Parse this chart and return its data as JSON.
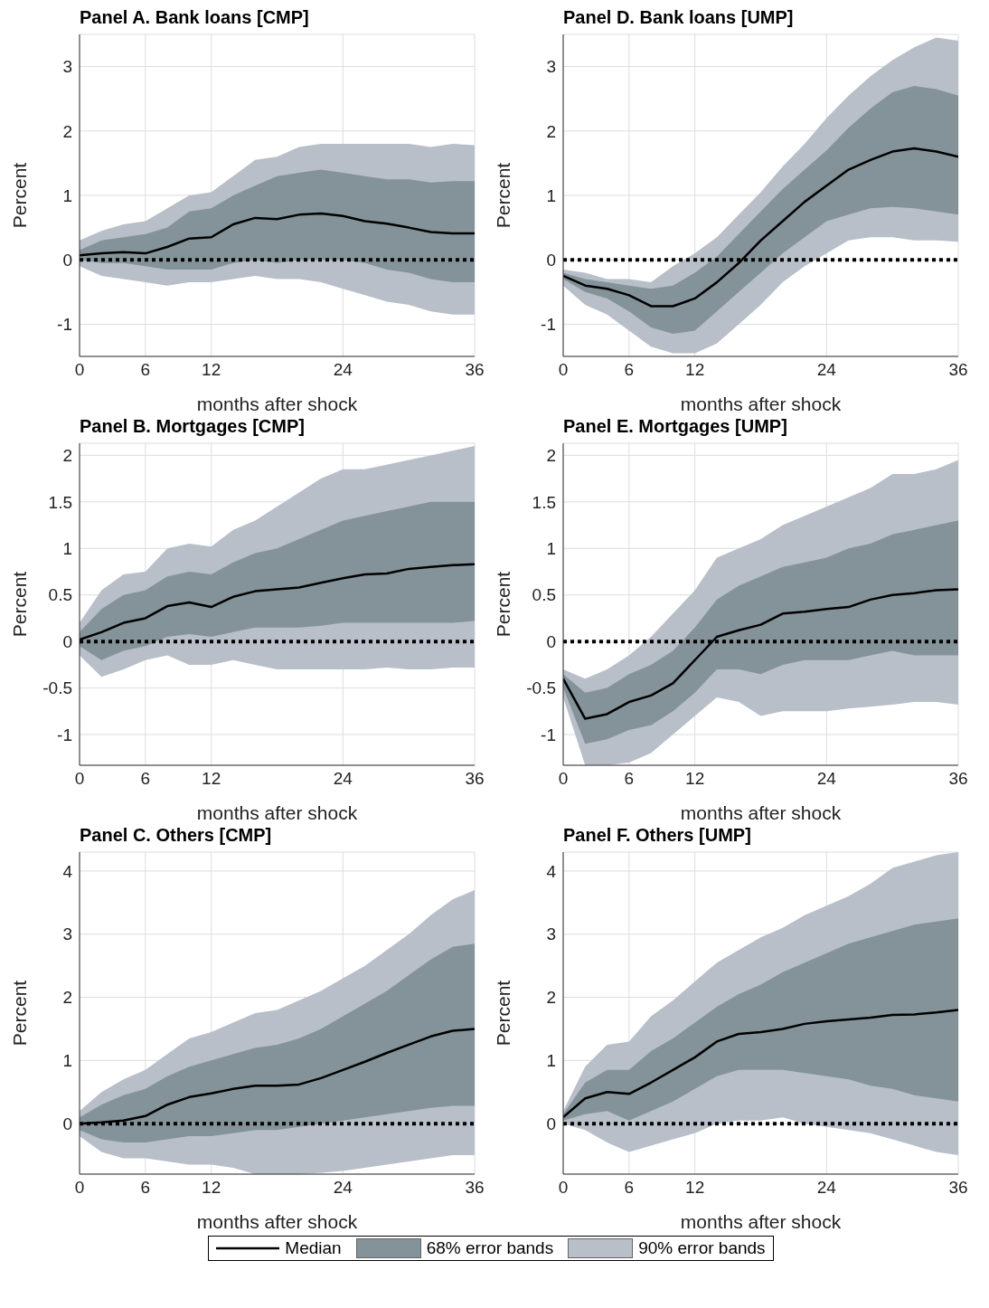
{
  "chart_data": [
    {
      "type": "line",
      "title": "Panel A. Bank loans [CMP]",
      "xlabel": "months after shock",
      "ylabel": "Percent",
      "xlim": [
        0,
        36
      ],
      "xticks": [
        0,
        6,
        12,
        24,
        36
      ],
      "ylim": [
        -1.5,
        3.5
      ],
      "yticks": [
        -1,
        0,
        1,
        2,
        3
      ],
      "grid": true,
      "ref_lines": [
        {
          "axis": "y",
          "value": 0,
          "color": "#000000",
          "line_style": "dotted"
        }
      ],
      "x": [
        0,
        2,
        4,
        6,
        8,
        10,
        12,
        14,
        16,
        18,
        20,
        22,
        24,
        26,
        28,
        30,
        32,
        34,
        36
      ],
      "series": [
        {
          "type": "line",
          "color": "#000000",
          "values": [
            0.07,
            0.1,
            0.12,
            0.1,
            0.2,
            0.33,
            0.35,
            0.55,
            0.65,
            0.63,
            0.7,
            0.72,
            0.68,
            0.6,
            0.56,
            0.5,
            0.43,
            0.41,
            0.41
          ]
        },
        {
          "type": "line",
          "color": "#849399",
          "values": [
            null,
            null,
            null,
            null,
            null,
            null,
            null,
            null,
            null,
            null,
            null,
            null,
            null,
            null,
            null,
            null,
            null,
            null,
            null
          ],
          "lower": [
            0,
            -0.05,
            -0.05,
            -0.1,
            -0.15,
            -0.15,
            -0.15,
            -0.05,
            0,
            -0.05,
            0,
            0,
            0,
            -0.05,
            -0.15,
            -0.2,
            -0.3,
            -0.35,
            -0.35
          ],
          "upper": [
            0.15,
            0.3,
            0.35,
            0.4,
            0.5,
            0.75,
            0.8,
            1.0,
            1.15,
            1.3,
            1.35,
            1.4,
            1.35,
            1.3,
            1.25,
            1.25,
            1.2,
            1.22,
            1.22
          ]
        },
        {
          "type": "line",
          "color": "#b8bfc9",
          "values": [
            null,
            null,
            null,
            null,
            null,
            null,
            null,
            null,
            null,
            null,
            null,
            null,
            null,
            null,
            null,
            null,
            null,
            null,
            null
          ],
          "lower": [
            -0.1,
            -0.25,
            -0.3,
            -0.35,
            -0.4,
            -0.35,
            -0.35,
            -0.3,
            -0.25,
            -0.3,
            -0.3,
            -0.35,
            -0.45,
            -0.55,
            -0.65,
            -0.7,
            -0.8,
            -0.85,
            -0.85
          ],
          "upper": [
            0.3,
            0.45,
            0.55,
            0.6,
            0.8,
            1.0,
            1.05,
            1.3,
            1.55,
            1.6,
            1.75,
            1.8,
            1.8,
            1.8,
            1.8,
            1.8,
            1.75,
            1.8,
            1.78
          ]
        }
      ]
    },
    {
      "type": "line",
      "title": "Panel D. Bank loans [UMP]",
      "xlabel": "months after shock",
      "ylabel": "Percent",
      "xlim": [
        0,
        36
      ],
      "xticks": [
        0,
        6,
        12,
        24,
        36
      ],
      "ylim": [
        -1.5,
        3.5
      ],
      "yticks": [
        -1,
        0,
        1,
        2,
        3
      ],
      "grid": true,
      "ref_lines": [
        {
          "axis": "y",
          "value": 0,
          "color": "#000000",
          "line_style": "dotted"
        }
      ],
      "x": [
        0,
        2,
        4,
        6,
        8,
        10,
        12,
        14,
        16,
        18,
        20,
        22,
        24,
        26,
        28,
        30,
        32,
        34,
        36
      ],
      "series": [
        {
          "type": "line",
          "color": "#000000",
          "values": [
            -0.25,
            -0.4,
            -0.45,
            -0.55,
            -0.72,
            -0.72,
            -0.6,
            -0.35,
            -0.05,
            0.3,
            0.6,
            0.9,
            1.15,
            1.4,
            1.55,
            1.68,
            1.73,
            1.68,
            1.6
          ]
        },
        {
          "type": "line",
          "color": "#849399",
          "values": [
            null,
            null,
            null,
            null,
            null,
            null,
            null,
            null,
            null,
            null,
            null,
            null,
            null,
            null,
            null,
            null,
            null,
            null,
            null
          ],
          "lower": [
            -0.3,
            -0.5,
            -0.6,
            -0.8,
            -1.05,
            -1.15,
            -1.1,
            -0.8,
            -0.5,
            -0.2,
            0.1,
            0.35,
            0.6,
            0.7,
            0.8,
            0.82,
            0.8,
            0.75,
            0.7
          ],
          "upper": [
            -0.2,
            -0.3,
            -0.35,
            -0.4,
            -0.45,
            -0.4,
            -0.2,
            0.05,
            0.4,
            0.75,
            1.1,
            1.4,
            1.7,
            2.05,
            2.35,
            2.6,
            2.7,
            2.65,
            2.55
          ]
        },
        {
          "type": "line",
          "color": "#b8bfc9",
          "values": [
            null,
            null,
            null,
            null,
            null,
            null,
            null,
            null,
            null,
            null,
            null,
            null,
            null,
            null,
            null,
            null,
            null,
            null,
            null
          ],
          "lower": [
            -0.4,
            -0.7,
            -0.85,
            -1.1,
            -1.35,
            -1.45,
            -1.45,
            -1.3,
            -1.0,
            -0.7,
            -0.35,
            -0.1,
            0.1,
            0.3,
            0.35,
            0.35,
            0.3,
            0.3,
            0.28
          ],
          "upper": [
            -0.15,
            -0.2,
            -0.3,
            -0.3,
            -0.35,
            -0.1,
            0.1,
            0.35,
            0.7,
            1.05,
            1.45,
            1.8,
            2.2,
            2.55,
            2.85,
            3.1,
            3.3,
            3.45,
            3.4
          ]
        }
      ]
    },
    {
      "type": "line",
      "title": "Panel B. Mortgages [CMP]",
      "xlabel": "months after shock",
      "ylabel": "Percent",
      "xlim": [
        0,
        36
      ],
      "xticks": [
        0,
        6,
        12,
        24,
        36
      ],
      "ylim": [
        -1.33,
        2.13
      ],
      "yticks": [
        -1,
        -0.5,
        0,
        0.5,
        1,
        1.5,
        2
      ],
      "grid": true,
      "ref_lines": [
        {
          "axis": "y",
          "value": 0,
          "color": "#000000",
          "line_style": "dotted"
        }
      ],
      "x": [
        0,
        2,
        4,
        6,
        8,
        10,
        12,
        14,
        16,
        18,
        20,
        22,
        24,
        26,
        28,
        30,
        32,
        34,
        36
      ],
      "series": [
        {
          "type": "line",
          "color": "#000000",
          "values": [
            0.02,
            0.1,
            0.2,
            0.25,
            0.38,
            0.42,
            0.37,
            0.48,
            0.54,
            0.56,
            0.58,
            0.63,
            0.68,
            0.72,
            0.73,
            0.78,
            0.8,
            0.82,
            0.83
          ]
        },
        {
          "type": "line",
          "color": "#849399",
          "values": [
            null,
            null,
            null,
            null,
            null,
            null,
            null,
            null,
            null,
            null,
            null,
            null,
            null,
            null,
            null,
            null,
            null,
            null,
            null
          ],
          "lower": [
            -0.05,
            -0.2,
            -0.1,
            -0.05,
            0.05,
            0.08,
            0.05,
            0.1,
            0.15,
            0.15,
            0.15,
            0.17,
            0.2,
            0.2,
            0.2,
            0.2,
            0.2,
            0.2,
            0.22
          ],
          "upper": [
            0.1,
            0.35,
            0.5,
            0.55,
            0.7,
            0.75,
            0.72,
            0.85,
            0.95,
            1.0,
            1.1,
            1.2,
            1.3,
            1.35,
            1.4,
            1.45,
            1.5,
            1.5,
            1.5
          ]
        },
        {
          "type": "line",
          "color": "#b8bfc9",
          "values": [
            null,
            null,
            null,
            null,
            null,
            null,
            null,
            null,
            null,
            null,
            null,
            null,
            null,
            null,
            null,
            null,
            null,
            null,
            null
          ],
          "lower": [
            -0.15,
            -0.38,
            -0.3,
            -0.2,
            -0.15,
            -0.25,
            -0.25,
            -0.2,
            -0.25,
            -0.3,
            -0.3,
            -0.3,
            -0.3,
            -0.3,
            -0.28,
            -0.3,
            -0.3,
            -0.28,
            -0.28
          ],
          "upper": [
            0.2,
            0.55,
            0.72,
            0.75,
            1.0,
            1.05,
            1.02,
            1.2,
            1.3,
            1.45,
            1.6,
            1.75,
            1.85,
            1.85,
            1.9,
            1.95,
            2.0,
            2.05,
            2.1
          ]
        }
      ]
    },
    {
      "type": "line",
      "title": "Panel E. Mortgages [UMP]",
      "xlabel": "months after shock",
      "ylabel": "Percent",
      "xlim": [
        0,
        36
      ],
      "xticks": [
        0,
        6,
        12,
        24,
        36
      ],
      "ylim": [
        -1.33,
        2.13
      ],
      "yticks": [
        -1,
        -0.5,
        0,
        0.5,
        1,
        1.5,
        2
      ],
      "grid": true,
      "ref_lines": [
        {
          "axis": "y",
          "value": 0,
          "color": "#000000",
          "line_style": "dotted"
        }
      ],
      "x": [
        0,
        2,
        4,
        6,
        8,
        10,
        12,
        14,
        16,
        18,
        20,
        22,
        24,
        26,
        28,
        30,
        32,
        34,
        36
      ],
      "series": [
        {
          "type": "line",
          "color": "#000000",
          "values": [
            -0.4,
            -0.83,
            -0.78,
            -0.65,
            -0.58,
            -0.45,
            -0.2,
            0.05,
            0.12,
            0.18,
            0.3,
            0.32,
            0.35,
            0.37,
            0.45,
            0.5,
            0.52,
            0.55,
            0.56
          ]
        },
        {
          "type": "line",
          "color": "#849399",
          "values": [
            null,
            null,
            null,
            null,
            null,
            null,
            null,
            null,
            null,
            null,
            null,
            null,
            null,
            null,
            null,
            null,
            null,
            null,
            null
          ],
          "lower": [
            -0.5,
            -1.1,
            -1.05,
            -0.95,
            -0.9,
            -0.75,
            -0.55,
            -0.3,
            -0.3,
            -0.35,
            -0.25,
            -0.2,
            -0.2,
            -0.2,
            -0.15,
            -0.1,
            -0.15,
            -0.15,
            -0.15
          ],
          "upper": [
            -0.35,
            -0.55,
            -0.5,
            -0.35,
            -0.25,
            -0.1,
            0.15,
            0.45,
            0.6,
            0.7,
            0.8,
            0.85,
            0.9,
            1.0,
            1.05,
            1.15,
            1.2,
            1.25,
            1.3
          ]
        },
        {
          "type": "line",
          "color": "#b8bfc9",
          "values": [
            null,
            null,
            null,
            null,
            null,
            null,
            null,
            null,
            null,
            null,
            null,
            null,
            null,
            null,
            null,
            null,
            null,
            null,
            null
          ],
          "lower": [
            -0.6,
            -1.33,
            -1.33,
            -1.3,
            -1.2,
            -1.0,
            -0.8,
            -0.6,
            -0.65,
            -0.8,
            -0.75,
            -0.75,
            -0.75,
            -0.72,
            -0.7,
            -0.68,
            -0.65,
            -0.65,
            -0.68
          ],
          "upper": [
            -0.3,
            -0.4,
            -0.3,
            -0.15,
            0.05,
            0.3,
            0.55,
            0.9,
            1.0,
            1.1,
            1.25,
            1.35,
            1.45,
            1.55,
            1.65,
            1.8,
            1.8,
            1.85,
            1.95
          ]
        }
      ]
    },
    {
      "type": "line",
      "title": "Panel C. Others [CMP]",
      "xlabel": "months after shock",
      "ylabel": "Percent",
      "xlim": [
        0,
        36
      ],
      "xticks": [
        0,
        6,
        12,
        24,
        36
      ],
      "ylim": [
        -0.8,
        4.3
      ],
      "yticks": [
        0,
        1,
        2,
        3,
        4
      ],
      "grid": true,
      "ref_lines": [
        {
          "axis": "y",
          "value": 0,
          "color": "#000000",
          "line_style": "dotted"
        }
      ],
      "x": [
        0,
        2,
        4,
        6,
        8,
        10,
        12,
        14,
        16,
        18,
        20,
        22,
        24,
        26,
        28,
        30,
        32,
        34,
        36
      ],
      "series": [
        {
          "type": "line",
          "color": "#000000",
          "values": [
            0,
            0.02,
            0.05,
            0.12,
            0.3,
            0.42,
            0.48,
            0.55,
            0.6,
            0.6,
            0.62,
            0.72,
            0.85,
            0.98,
            1.12,
            1.25,
            1.38,
            1.47,
            1.5
          ]
        },
        {
          "type": "line",
          "color": "#849399",
          "values": [
            null,
            null,
            null,
            null,
            null,
            null,
            null,
            null,
            null,
            null,
            null,
            null,
            null,
            null,
            null,
            null,
            null,
            null,
            null
          ],
          "lower": [
            -0.1,
            -0.25,
            -0.3,
            -0.3,
            -0.25,
            -0.2,
            -0.2,
            -0.15,
            -0.1,
            -0.1,
            -0.05,
            0,
            0.05,
            0.1,
            0.15,
            0.2,
            0.25,
            0.28,
            0.28
          ],
          "upper": [
            0.1,
            0.3,
            0.45,
            0.55,
            0.75,
            0.9,
            1.0,
            1.1,
            1.2,
            1.25,
            1.35,
            1.5,
            1.7,
            1.9,
            2.1,
            2.35,
            2.6,
            2.8,
            2.85
          ]
        },
        {
          "type": "line",
          "color": "#b8bfc9",
          "values": [
            null,
            null,
            null,
            null,
            null,
            null,
            null,
            null,
            null,
            null,
            null,
            null,
            null,
            null,
            null,
            null,
            null,
            null,
            null
          ],
          "lower": [
            -0.2,
            -0.45,
            -0.55,
            -0.55,
            -0.6,
            -0.65,
            -0.65,
            -0.7,
            -0.8,
            -0.8,
            -0.8,
            -0.78,
            -0.75,
            -0.7,
            -0.65,
            -0.6,
            -0.55,
            -0.5,
            -0.5
          ],
          "upper": [
            0.2,
            0.5,
            0.7,
            0.85,
            1.1,
            1.35,
            1.45,
            1.6,
            1.75,
            1.8,
            1.95,
            2.1,
            2.3,
            2.5,
            2.75,
            3.0,
            3.3,
            3.55,
            3.7
          ]
        }
      ]
    },
    {
      "type": "line",
      "title": "Panel F. Others [UMP]",
      "xlabel": "months after shock",
      "ylabel": "Percent",
      "xlim": [
        0,
        36
      ],
      "xticks": [
        0,
        6,
        12,
        24,
        36
      ],
      "ylim": [
        -0.8,
        4.3
      ],
      "yticks": [
        0,
        1,
        2,
        3,
        4
      ],
      "grid": true,
      "legend": "bottom",
      "ref_lines": [
        {
          "axis": "y",
          "value": 0,
          "color": "#000000",
          "line_style": "dotted"
        }
      ],
      "x": [
        0,
        2,
        4,
        6,
        8,
        10,
        12,
        14,
        16,
        18,
        20,
        22,
        24,
        26,
        28,
        30,
        32,
        34,
        36
      ],
      "series": [
        {
          "type": "line",
          "name": "Median",
          "color": "#000000",
          "values": [
            0.1,
            0.4,
            0.5,
            0.47,
            0.65,
            0.85,
            1.05,
            1.3,
            1.42,
            1.45,
            1.5,
            1.58,
            1.62,
            1.65,
            1.68,
            1.72,
            1.73,
            1.76,
            1.8
          ]
        },
        {
          "type": "line",
          "name": "68% error bands",
          "color": "#849399",
          "values": [
            null,
            null,
            null,
            null,
            null,
            null,
            null,
            null,
            null,
            null,
            null,
            null,
            null,
            null,
            null,
            null,
            null,
            null,
            null
          ],
          "lower": [
            0.05,
            0.15,
            0.2,
            0.05,
            0.2,
            0.35,
            0.55,
            0.75,
            0.85,
            0.85,
            0.85,
            0.8,
            0.75,
            0.7,
            0.6,
            0.55,
            0.45,
            0.4,
            0.35
          ],
          "upper": [
            0.15,
            0.65,
            0.85,
            0.85,
            1.15,
            1.35,
            1.6,
            1.85,
            2.05,
            2.2,
            2.4,
            2.55,
            2.7,
            2.85,
            2.95,
            3.05,
            3.15,
            3.2,
            3.25
          ]
        },
        {
          "type": "line",
          "name": "90% error bands",
          "color": "#b8bfc9",
          "values": [
            null,
            null,
            null,
            null,
            null,
            null,
            null,
            null,
            null,
            null,
            null,
            null,
            null,
            null,
            null,
            null,
            null,
            null,
            null
          ],
          "lower": [
            0,
            -0.1,
            -0.3,
            -0.45,
            -0.35,
            -0.25,
            -0.15,
            0,
            0.05,
            0.05,
            0.1,
            0.0,
            -0.05,
            -0.1,
            -0.15,
            -0.25,
            -0.35,
            -0.45,
            -0.5
          ],
          "upper": [
            0.2,
            0.9,
            1.25,
            1.3,
            1.7,
            1.95,
            2.25,
            2.55,
            2.75,
            2.95,
            3.1,
            3.3,
            3.45,
            3.6,
            3.8,
            4.05,
            4.15,
            4.25,
            4.3
          ]
        }
      ]
    }
  ]
}
